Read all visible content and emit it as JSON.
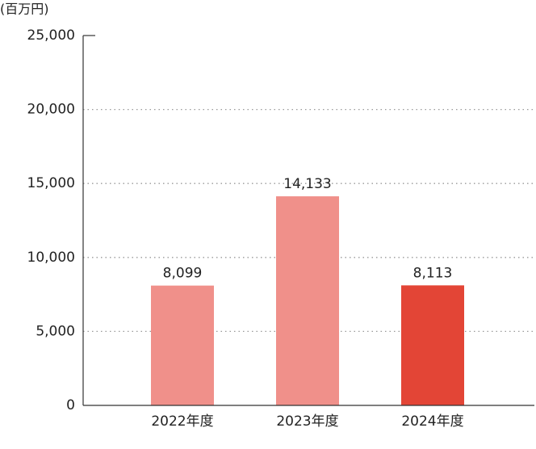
{
  "chart_data": {
    "type": "bar",
    "unit_label": "(百万円)",
    "categories": [
      "2022年度",
      "2023年度",
      "2024年度"
    ],
    "values": [
      8099,
      14133,
      8113
    ],
    "value_labels": [
      "8,099",
      "14,133",
      "8,113"
    ],
    "colors": [
      "#f0908a",
      "#f0908a",
      "#e34536"
    ],
    "ylim": [
      0,
      25000
    ],
    "yticks": [
      0,
      {
        "value": 5000,
        "label": "5,000"
      },
      {
        "value": 10000,
        "label": "10,000"
      },
      {
        "value": 15000,
        "label": "15,000"
      },
      {
        "value": 20000,
        "label": "20,000"
      },
      {
        "value": 25000,
        "label": "25,000"
      }
    ],
    "grid": true
  }
}
